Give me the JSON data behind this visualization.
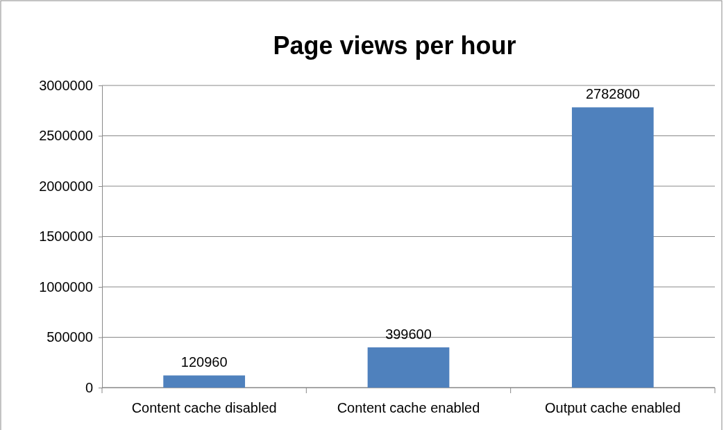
{
  "chart_data": {
    "type": "bar",
    "title": "Page views per hour",
    "categories": [
      "Content cache disabled",
      "Content cache enabled",
      "Output cache enabled"
    ],
    "values": [
      120960,
      399600,
      2782800
    ],
    "color": "#4f81bd",
    "ylim": [
      0,
      3000000
    ],
    "yticks": [
      0,
      500000,
      1000000,
      1500000,
      2000000,
      2500000,
      3000000
    ],
    "grid": "y",
    "data_labels": true
  }
}
